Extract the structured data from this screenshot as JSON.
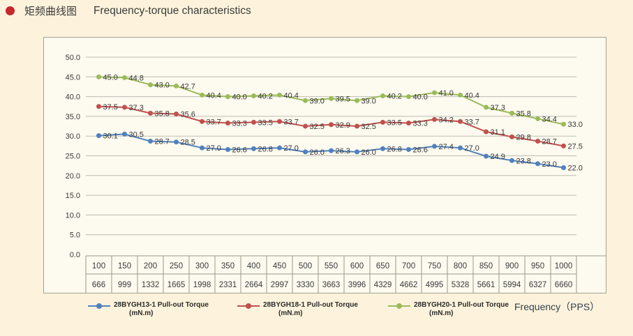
{
  "title": {
    "zh": "矩频曲线图",
    "en": "Frequency-torque characteristics"
  },
  "chart_data": {
    "type": "line",
    "x_axis": {
      "label": "Frequency（PPS）",
      "pps_row": [
        100,
        150,
        200,
        250,
        300,
        350,
        400,
        450,
        500,
        550,
        600,
        650,
        700,
        750,
        800,
        850,
        900,
        950,
        1000
      ],
      "second_row": [
        666,
        999,
        1332,
        1665,
        1998,
        2331,
        2664,
        2997,
        3330,
        3663,
        3996,
        4329,
        4662,
        4995,
        5328,
        5661,
        5994,
        6327,
        6660
      ]
    },
    "y_axis": {
      "min": 0,
      "max": 50,
      "step": 5
    },
    "series": [
      {
        "name": "28BYGH13-1 Pull-out Torque",
        "unit": "(mN.m)",
        "color": "#4f81bd",
        "values": [
          30.1,
          30.5,
          28.7,
          28.5,
          27.0,
          26.6,
          26.8,
          27.0,
          26.0,
          26.3,
          26.0,
          26.8,
          26.6,
          27.4,
          27.0,
          24.9,
          23.8,
          23.0,
          22.0
        ]
      },
      {
        "name": "28BYGH18-1 Pull-out Torque",
        "unit": "(mN.m)",
        "color": "#c0504d",
        "values": [
          37.5,
          37.3,
          35.8,
          35.6,
          33.7,
          33.3,
          33.5,
          33.7,
          32.5,
          32.9,
          32.5,
          33.5,
          33.3,
          34.2,
          33.7,
          31.1,
          29.8,
          28.7,
          27.5
        ]
      },
      {
        "name": "28BYGH20-1 Pull-out Torque",
        "unit": "(mN.m)",
        "color": "#9bbb59",
        "values": [
          45.0,
          44.8,
          43.0,
          42.7,
          40.4,
          40.0,
          40.2,
          40.4,
          39.0,
          39.5,
          39.0,
          40.2,
          40.0,
          41.0,
          40.4,
          37.3,
          35.8,
          34.4,
          33.0
        ]
      }
    ],
    "grid": true,
    "data_labels": true,
    "legend_position": "bottom"
  },
  "colors": {
    "background": "#fdf3dc",
    "chart_box_background": "#fdfaef",
    "bullet": "#c8272d",
    "box_border": "#a49f8e",
    "gridline": "#bdbcb4",
    "table_border": "#9c988a",
    "text": "#3a3a3a",
    "data_label": "#363636",
    "axis_label": "#333f4f"
  }
}
